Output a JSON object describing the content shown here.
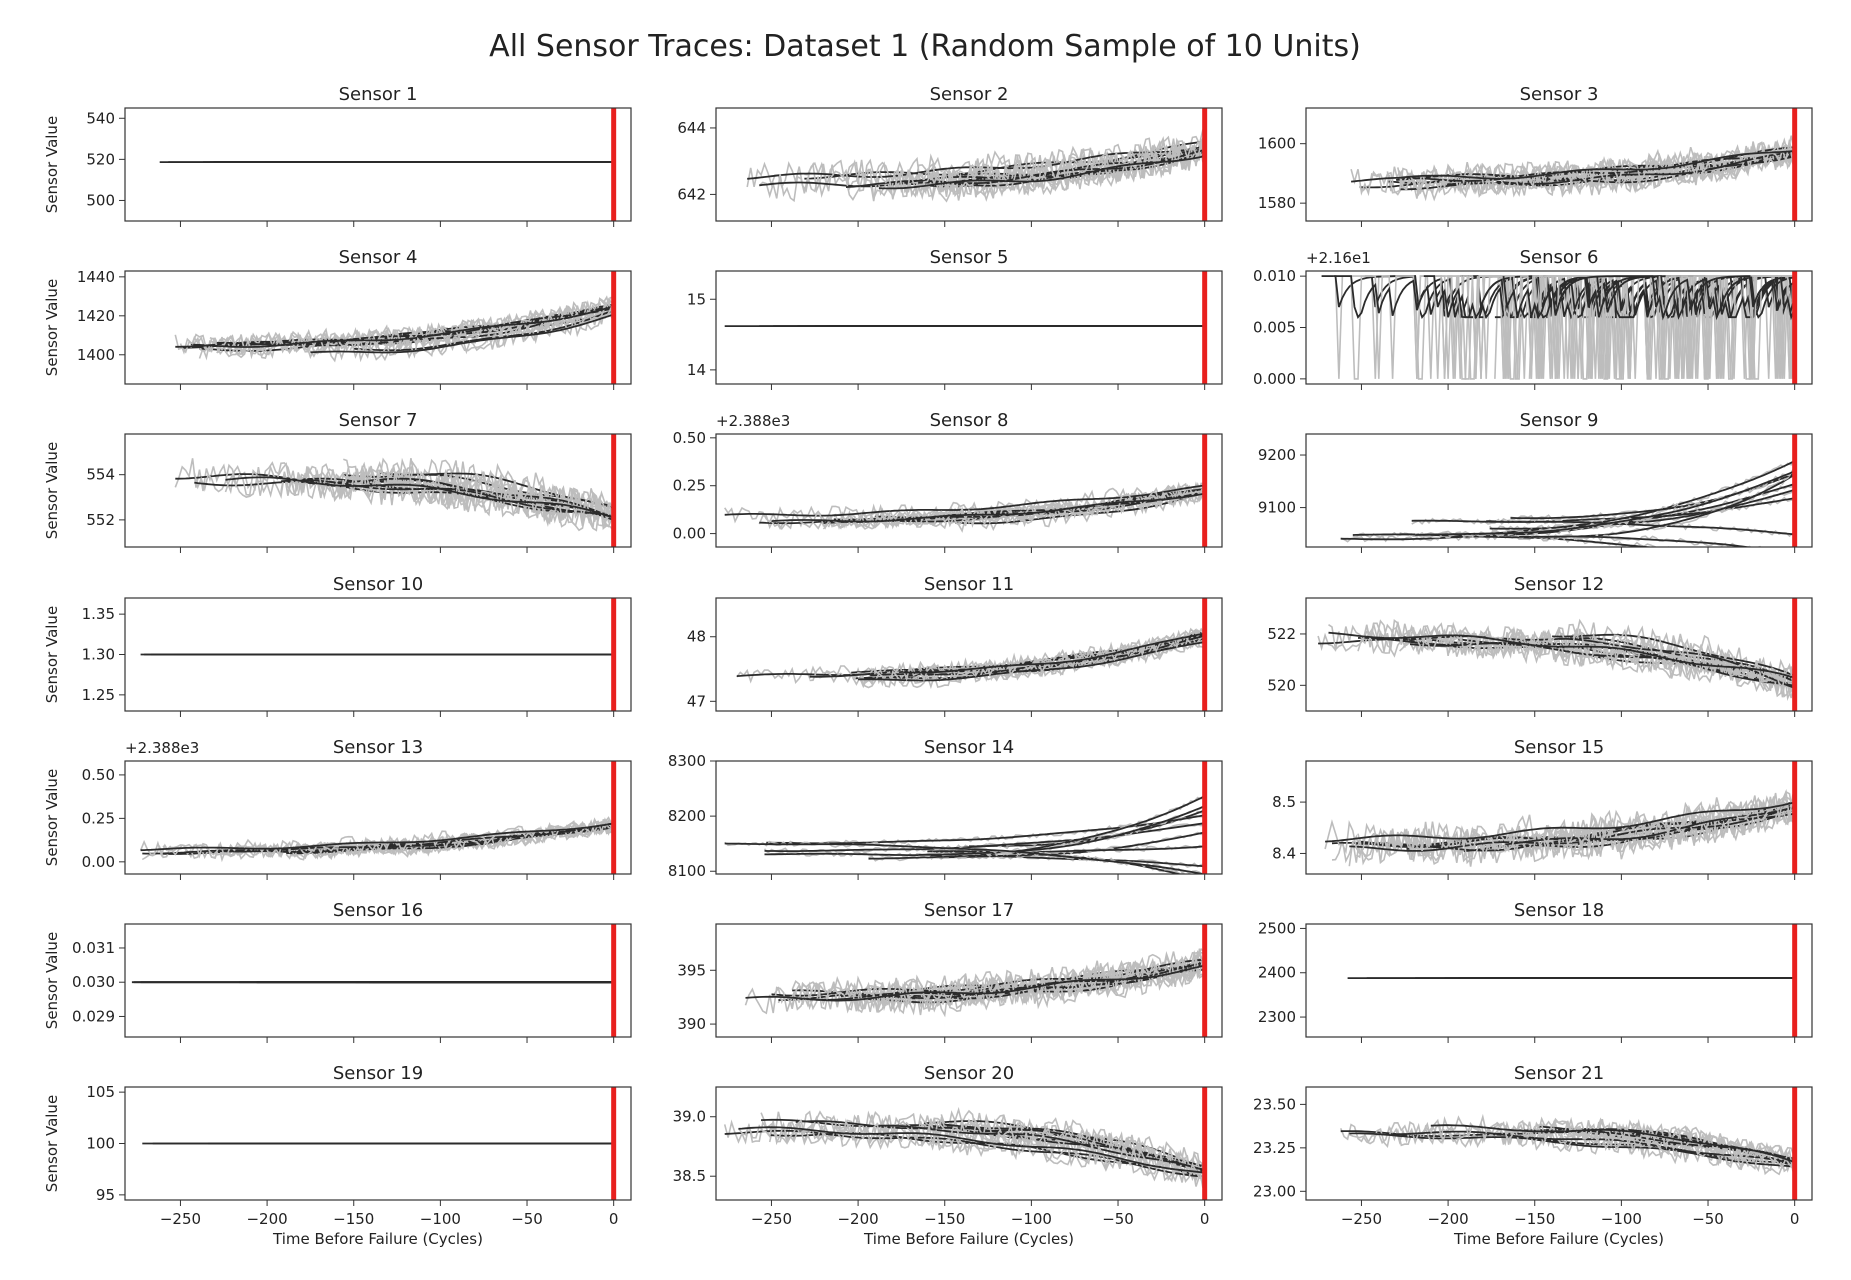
{
  "figure": {
    "title": "All Sensor Traces: Dataset 1 (Random Sample of 10 Units)"
  },
  "colors": {
    "raw": "#bdbdbd",
    "smooth": "#2b2b2b",
    "failure_line": "#e8201e",
    "axes": "#333333"
  },
  "chart_data": [
    {
      "type": "line",
      "title": "Sensor 1",
      "ylabel": "Sensor Value",
      "xlabel": "",
      "ylim": [
        490,
        545
      ],
      "yticks": [
        500,
        520,
        540
      ],
      "offset_label": "",
      "pattern": "flat",
      "base": 518.67,
      "drift": 0,
      "noise": 0,
      "units": 10
    },
    {
      "type": "line",
      "title": "Sensor 2",
      "ylabel": "",
      "xlabel": "",
      "ylim": [
        641.2,
        644.6
      ],
      "yticks": [
        642,
        644
      ],
      "offset_label": "",
      "pattern": "rise",
      "base": 642.4,
      "drift": 1.3,
      "noise": 0.45,
      "units": 10
    },
    {
      "type": "line",
      "title": "Sensor 3",
      "ylabel": "",
      "xlabel": "",
      "ylim": [
        1574,
        1612
      ],
      "yticks": [
        1580,
        1600
      ],
      "offset_label": "",
      "pattern": "rise",
      "base": 1587,
      "drift": 13,
      "noise": 4.5,
      "units": 10
    },
    {
      "type": "line",
      "title": "Sensor 4",
      "ylabel": "Sensor Value",
      "xlabel": "",
      "ylim": [
        1385,
        1443
      ],
      "yticks": [
        1400,
        1420,
        1440
      ],
      "offset_label": "",
      "pattern": "rise",
      "base": 1403,
      "drift": 26,
      "noise": 5,
      "units": 10
    },
    {
      "type": "line",
      "title": "Sensor 5",
      "ylabel": "",
      "xlabel": "",
      "ylim": [
        13.8,
        15.4
      ],
      "yticks": [
        14,
        15
      ],
      "offset_label": "",
      "pattern": "flat",
      "base": 14.62,
      "drift": 0,
      "noise": 0,
      "units": 10
    },
    {
      "type": "line",
      "title": "Sensor 6",
      "ylabel": "",
      "xlabel": "",
      "ylim": [
        -0.0005,
        0.0105
      ],
      "yticks": [
        0.0,
        0.005,
        0.01
      ],
      "offset_label": "+2.16e1",
      "pattern": "binary",
      "base": 0.01,
      "drift": 0,
      "noise": 0,
      "units": 10
    },
    {
      "type": "line",
      "title": "Sensor 7",
      "ylabel": "Sensor Value",
      "xlabel": "",
      "ylim": [
        550.8,
        555.8
      ],
      "yticks": [
        552,
        554
      ],
      "offset_label": "",
      "pattern": "fall",
      "base": 553.9,
      "drift": 2.2,
      "noise": 0.7,
      "units": 10
    },
    {
      "type": "line",
      "title": "Sensor 8",
      "ylabel": "",
      "xlabel": "",
      "ylim": [
        -0.07,
        0.52
      ],
      "yticks": [
        0.0,
        0.25,
        0.5
      ],
      "offset_label": "+2.388e3",
      "pattern": "rise",
      "base": 0.07,
      "drift": 0.2,
      "noise": 0.04,
      "units": 10
    },
    {
      "type": "line",
      "title": "Sensor 9",
      "ylabel": "",
      "xlabel": "",
      "ylim": [
        9025,
        9240
      ],
      "yticks": [
        9100,
        9200
      ],
      "offset_label": "",
      "pattern": "fan",
      "base": 9060,
      "drift": 170,
      "noise": 5,
      "units": 10
    },
    {
      "type": "line",
      "title": "Sensor 10",
      "ylabel": "Sensor Value",
      "xlabel": "",
      "ylim": [
        1.23,
        1.37
      ],
      "yticks": [
        1.25,
        1.3,
        1.35
      ],
      "offset_label": "",
      "pattern": "flat",
      "base": 1.3,
      "drift": 0,
      "noise": 0,
      "units": 10
    },
    {
      "type": "line",
      "title": "Sensor 11",
      "ylabel": "",
      "xlabel": "",
      "ylim": [
        46.85,
        48.6
      ],
      "yticks": [
        47,
        48
      ],
      "offset_label": "",
      "pattern": "rise",
      "base": 47.4,
      "drift": 0.8,
      "noise": 0.12,
      "units": 10
    },
    {
      "type": "line",
      "title": "Sensor 12",
      "ylabel": "",
      "xlabel": "",
      "ylim": [
        519.0,
        523.4
      ],
      "yticks": [
        520,
        522
      ],
      "offset_label": "",
      "pattern": "fall",
      "base": 521.9,
      "drift": 2.3,
      "noise": 0.55,
      "units": 10
    },
    {
      "type": "line",
      "title": "Sensor 13",
      "ylabel": "Sensor Value",
      "xlabel": "",
      "ylim": [
        -0.07,
        0.58
      ],
      "yticks": [
        0.0,
        0.25,
        0.5
      ],
      "offset_label": "+2.388e3",
      "pattern": "rise",
      "base": 0.06,
      "drift": 0.2,
      "noise": 0.04,
      "units": 10
    },
    {
      "type": "line",
      "title": "Sensor 14",
      "ylabel": "",
      "xlabel": "",
      "ylim": [
        8095,
        8300
      ],
      "yticks": [
        8100,
        8200,
        8300
      ],
      "offset_label": "",
      "pattern": "fan",
      "base": 8140,
      "drift": 140,
      "noise": 4,
      "units": 10
    },
    {
      "type": "line",
      "title": "Sensor 15",
      "ylabel": "",
      "xlabel": "",
      "ylim": [
        8.36,
        8.58
      ],
      "yticks": [
        8.4,
        8.5
      ],
      "offset_label": "",
      "pattern": "rise",
      "base": 8.42,
      "drift": 0.1,
      "noise": 0.03,
      "units": 10
    },
    {
      "type": "line",
      "title": "Sensor 16",
      "ylabel": "Sensor Value",
      "xlabel": "",
      "ylim": [
        0.0284,
        0.0317
      ],
      "yticks": [
        0.029,
        0.03,
        0.031
      ],
      "offset_label": "",
      "pattern": "flat",
      "base": 0.03,
      "drift": 0,
      "noise": 0,
      "units": 10
    },
    {
      "type": "line",
      "title": "Sensor 17",
      "ylabel": "",
      "xlabel": "",
      "ylim": [
        388.8,
        399.3
      ],
      "yticks": [
        390,
        395
      ],
      "offset_label": "",
      "pattern": "rise",
      "base": 392.5,
      "drift": 4,
      "noise": 1.3,
      "units": 10
    },
    {
      "type": "line",
      "title": "Sensor 18",
      "ylabel": "",
      "xlabel": "",
      "ylim": [
        2255,
        2510
      ],
      "yticks": [
        2300,
        2400,
        2500
      ],
      "offset_label": "",
      "pattern": "flat",
      "base": 2388,
      "drift": 0,
      "noise": 0,
      "units": 10
    },
    {
      "type": "line",
      "title": "Sensor 19",
      "ylabel": "Sensor Value",
      "xlabel": "Time Before Failure (Cycles)",
      "ylim": [
        94.5,
        105.5
      ],
      "yticks": [
        95,
        100,
        105
      ],
      "offset_label": "",
      "pattern": "flat",
      "base": 100,
      "drift": 0,
      "noise": 0,
      "units": 10
    },
    {
      "type": "line",
      "title": "Sensor 20",
      "ylabel": "",
      "xlabel": "Time Before Failure (Cycles)",
      "ylim": [
        38.3,
        39.25
      ],
      "yticks": [
        38.5,
        39.0
      ],
      "offset_label": "",
      "pattern": "fall",
      "base": 38.9,
      "drift": 0.5,
      "noise": 0.1,
      "units": 10
    },
    {
      "type": "line",
      "title": "Sensor 21",
      "ylabel": "",
      "xlabel": "Time Before Failure (Cycles)",
      "ylim": [
        22.95,
        23.6
      ],
      "yticks": [
        23.0,
        23.25,
        23.5
      ],
      "offset_label": "",
      "pattern": "fall",
      "base": 23.35,
      "drift": 0.25,
      "noise": 0.06,
      "units": 10
    }
  ],
  "x_axis": {
    "xlim": [
      -282,
      10
    ],
    "xticks": [
      -250,
      -200,
      -150,
      -100,
      -50,
      0
    ],
    "failure_x": 0
  }
}
